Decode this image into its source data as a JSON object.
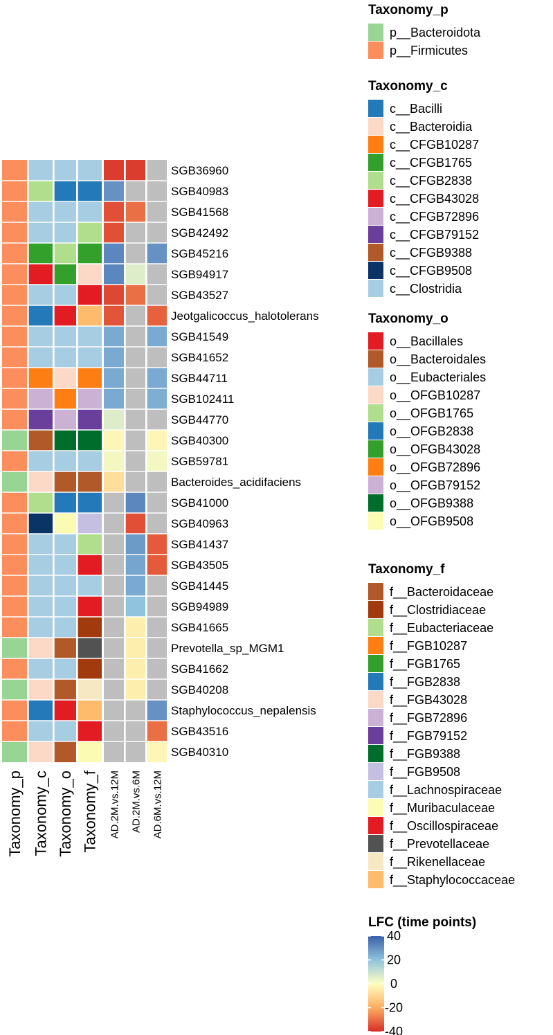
{
  "chart_data": {
    "type": "heatmap",
    "rows": [
      "SGB36960",
      "SGB40983",
      "SGB41568",
      "SGB42492",
      "SGB45216",
      "SGB94917",
      "SGB43527",
      "Jeotgalicoccus_halotolerans",
      "SGB41549",
      "SGB41652",
      "SGB44711",
      "SGB102411",
      "SGB44770",
      "SGB40300",
      "SGB59781",
      "Bacteroides_acidifaciens",
      "SGB41000",
      "SGB40963",
      "SGB41437",
      "SGB43505",
      "SGB41445",
      "SGB94989",
      "SGB41665",
      "Prevotella_sp_MGM1",
      "SGB41662",
      "SGB40208",
      "Staphylococcus_nepalensis",
      "SGB43516",
      "SGB40310"
    ],
    "annotation_columns": [
      "Taxonomy_p",
      "Taxonomy_c",
      "Taxonomy_o",
      "Taxonomy_f"
    ],
    "annotations": {
      "Taxonomy_p": [
        "p__Firmicutes",
        "p__Firmicutes",
        "p__Firmicutes",
        "p__Firmicutes",
        "p__Firmicutes",
        "p__Firmicutes",
        "p__Firmicutes",
        "p__Firmicutes",
        "p__Firmicutes",
        "p__Firmicutes",
        "p__Firmicutes",
        "p__Firmicutes",
        "p__Firmicutes",
        "p__Bacteroidota",
        "p__Firmicutes",
        "p__Bacteroidota",
        "p__Firmicutes",
        "p__Firmicutes",
        "p__Firmicutes",
        "p__Firmicutes",
        "p__Firmicutes",
        "p__Firmicutes",
        "p__Firmicutes",
        "p__Bacteroidota",
        "p__Firmicutes",
        "p__Bacteroidota",
        "p__Firmicutes",
        "p__Firmicutes",
        "p__Bacteroidota"
      ],
      "Taxonomy_c": [
        "c__Clostridia",
        "c__CFGB2838",
        "c__Clostridia",
        "c__Clostridia",
        "c__CFGB1765",
        "c__CFGB43028",
        "c__Clostridia",
        "c__Bacilli",
        "c__Clostridia",
        "c__Clostridia",
        "c__CFGB10287",
        "c__CFGB72896",
        "c__CFGB79152",
        "c__CFGB9388",
        "c__Clostridia",
        "c__Bacteroidia",
        "c__CFGB2838",
        "c__CFGB9508",
        "c__Clostridia",
        "c__Clostridia",
        "c__Clostridia",
        "c__Clostridia",
        "c__Clostridia",
        "c__Bacteroidia",
        "c__Clostridia",
        "c__Bacteroidia",
        "c__Bacilli",
        "c__Clostridia",
        "c__Bacteroidia"
      ],
      "Taxonomy_o": [
        "o__Eubacteriales",
        "o__OFGB2838",
        "o__Eubacteriales",
        "o__Eubacteriales",
        "o__OFGB1765",
        "o__OFGB43028",
        "o__Eubacteriales",
        "o__Bacillales",
        "o__Eubacteriales",
        "o__Eubacteriales",
        "o__OFGB10287",
        "o__OFGB72896",
        "o__OFGB79152",
        "o__OFGB9388",
        "o__Eubacteriales",
        "o__Bacteroidales",
        "o__OFGB2838",
        "o__OFGB9508",
        "o__Eubacteriales",
        "o__Eubacteriales",
        "o__Eubacteriales",
        "o__Eubacteriales",
        "o__Eubacteriales",
        "o__Bacteroidales",
        "o__Eubacteriales",
        "o__Bacteroidales",
        "o__Bacillales",
        "o__Eubacteriales",
        "o__Bacteroidales"
      ],
      "Taxonomy_f": [
        "f__Lachnospiraceae",
        "f__FGB2838",
        "f__Lachnospiraceae",
        "f__Eubacteriaceae",
        "f__FGB1765",
        "f__FGB43028",
        "f__Oscillospiraceae",
        "f__Staphylococcaceae",
        "f__Lachnospiraceae",
        "f__Lachnospiraceae",
        "f__FGB10287",
        "f__FGB72896",
        "f__FGB79152",
        "f__FGB9388",
        "f__Lachnospiraceae",
        "f__Bacteroidaceae",
        "f__FGB2838",
        "f__FGB9508",
        "f__Eubacteriaceae",
        "f__Oscillospiraceae",
        "f__Lachnospiraceae",
        "f__Oscillospiraceae",
        "f__Clostridiaceae",
        "f__Prevotellaceae",
        "f__Clostridiaceae",
        "f__Rikenellaceae",
        "f__Staphylococcaceae",
        "f__Oscillospiraceae",
        "f__Muribaculaceae"
      ]
    },
    "columns": [
      "AD.2M.vs.12M",
      "AD.2M.vs.6M",
      "AD.6M.vs.12M"
    ],
    "values": [
      [
        -38,
        -38,
        null
      ],
      [
        30,
        null,
        null
      ],
      [
        -35,
        -30,
        null
      ],
      [
        -35,
        null,
        null
      ],
      [
        32,
        null,
        30
      ],
      [
        32,
        6,
        null
      ],
      [
        -36,
        -30,
        null
      ],
      [
        -34,
        null,
        -32
      ],
      [
        25,
        null,
        25
      ],
      [
        25,
        null,
        null
      ],
      [
        25,
        null,
        25
      ],
      [
        25,
        null,
        24
      ],
      [
        6,
        null,
        null
      ],
      [
        -2,
        null,
        -2
      ],
      [
        2,
        null,
        2
      ],
      [
        -8,
        null,
        null
      ],
      [
        null,
        32,
        null
      ],
      [
        null,
        -35,
        null
      ],
      [
        null,
        28,
        -33
      ],
      [
        null,
        26,
        -33
      ],
      [
        null,
        25,
        null
      ],
      [
        null,
        20,
        null
      ],
      [
        null,
        -4,
        null
      ],
      [
        null,
        -4,
        null
      ],
      [
        null,
        -4,
        null
      ],
      [
        null,
        -4,
        null
      ],
      [
        null,
        null,
        30
      ],
      [
        null,
        null,
        -30
      ],
      [
        null,
        null,
        -2
      ]
    ],
    "missing_color": "#bebebe",
    "legends": [
      {
        "title": "Taxonomy_p",
        "items": [
          {
            "label": "p__Bacteroidota",
            "color": "#98d594"
          },
          {
            "label": "p__Firmicutes",
            "color": "#fb8e5c"
          }
        ]
      },
      {
        "title": "Taxonomy_c",
        "items": [
          {
            "label": "c__Bacilli",
            "color": "#2479b8"
          },
          {
            "label": "c__Bacteroidia",
            "color": "#fcd9c6"
          },
          {
            "label": "c__CFGB10287",
            "color": "#fd7f14"
          },
          {
            "label": "c__CFGB1765",
            "color": "#34a02c"
          },
          {
            "label": "c__CFGB2838",
            "color": "#b1de8d"
          },
          {
            "label": "c__CFGB43028",
            "color": "#e31c24"
          },
          {
            "label": "c__CFGB72896",
            "color": "#cbb2d5"
          },
          {
            "label": "c__CFGB79152",
            "color": "#6a3e9b"
          },
          {
            "label": "c__CFGB9388",
            "color": "#b15928"
          },
          {
            "label": "c__CFGB9508",
            "color": "#0a3366"
          },
          {
            "label": "c__Clostridia",
            "color": "#a7cde3"
          }
        ]
      },
      {
        "title": "Taxonomy_o",
        "items": [
          {
            "label": "o__Bacillales",
            "color": "#e31c24"
          },
          {
            "label": "o__Bacteroidales",
            "color": "#b15928"
          },
          {
            "label": "o__Eubacteriales",
            "color": "#a7cde3"
          },
          {
            "label": "o__OFGB10287",
            "color": "#fcd9c6"
          },
          {
            "label": "o__OFGB1765",
            "color": "#b1de8d"
          },
          {
            "label": "o__OFGB2838",
            "color": "#2479b8"
          },
          {
            "label": "o__OFGB43028",
            "color": "#34a02c"
          },
          {
            "label": "o__OFGB72896",
            "color": "#fd7f14"
          },
          {
            "label": "o__OFGB79152",
            "color": "#cbb2d5"
          },
          {
            "label": "o__OFGB9388",
            "color": "#006d2c"
          },
          {
            "label": "o__OFGB9508",
            "color": "#fbfbb4"
          }
        ]
      },
      {
        "title": "Taxonomy_f",
        "items": [
          {
            "label": "f__Bacteroidaceae",
            "color": "#b15928"
          },
          {
            "label": "f__Clostridiaceae",
            "color": "#a13a0c"
          },
          {
            "label": "f__Eubacteriaceae",
            "color": "#b1de8d"
          },
          {
            "label": "f__FGB10287",
            "color": "#fd7f14"
          },
          {
            "label": "f__FGB1765",
            "color": "#34a02c"
          },
          {
            "label": "f__FGB2838",
            "color": "#2479b8"
          },
          {
            "label": "f__FGB43028",
            "color": "#fcd9c6"
          },
          {
            "label": "f__FGB72896",
            "color": "#cbb2d5"
          },
          {
            "label": "f__FGB79152",
            "color": "#6a3e9b"
          },
          {
            "label": "f__FGB9388",
            "color": "#006d2c"
          },
          {
            "label": "f__FGB9508",
            "color": "#c5c0e1"
          },
          {
            "label": "f__Lachnospiraceae",
            "color": "#a7cde3"
          },
          {
            "label": "f__Muribaculaceae",
            "color": "#fbfbb4"
          },
          {
            "label": "f__Oscillospiraceae",
            "color": "#e31c24"
          },
          {
            "label": "f__Prevotellaceae",
            "color": "#525252"
          },
          {
            "label": "f__Rikenellaceae",
            "color": "#f6e8c3"
          },
          {
            "label": "f__Staphylococcaceae",
            "color": "#fdbb6b"
          }
        ]
      }
    ],
    "color_scale": {
      "title": "LFC (time points)",
      "min": -40,
      "max": 40,
      "ticks": [
        "40",
        "20",
        "0",
        "-20",
        "-40"
      ],
      "stops": [
        {
          "value": -40,
          "color": "#d62f27"
        },
        {
          "value": -20,
          "color": "#fdae61"
        },
        {
          "value": 0,
          "color": "#fefec0"
        },
        {
          "value": 20,
          "color": "#8fc3de"
        },
        {
          "value": 40,
          "color": "#3a5fa8"
        }
      ]
    }
  }
}
